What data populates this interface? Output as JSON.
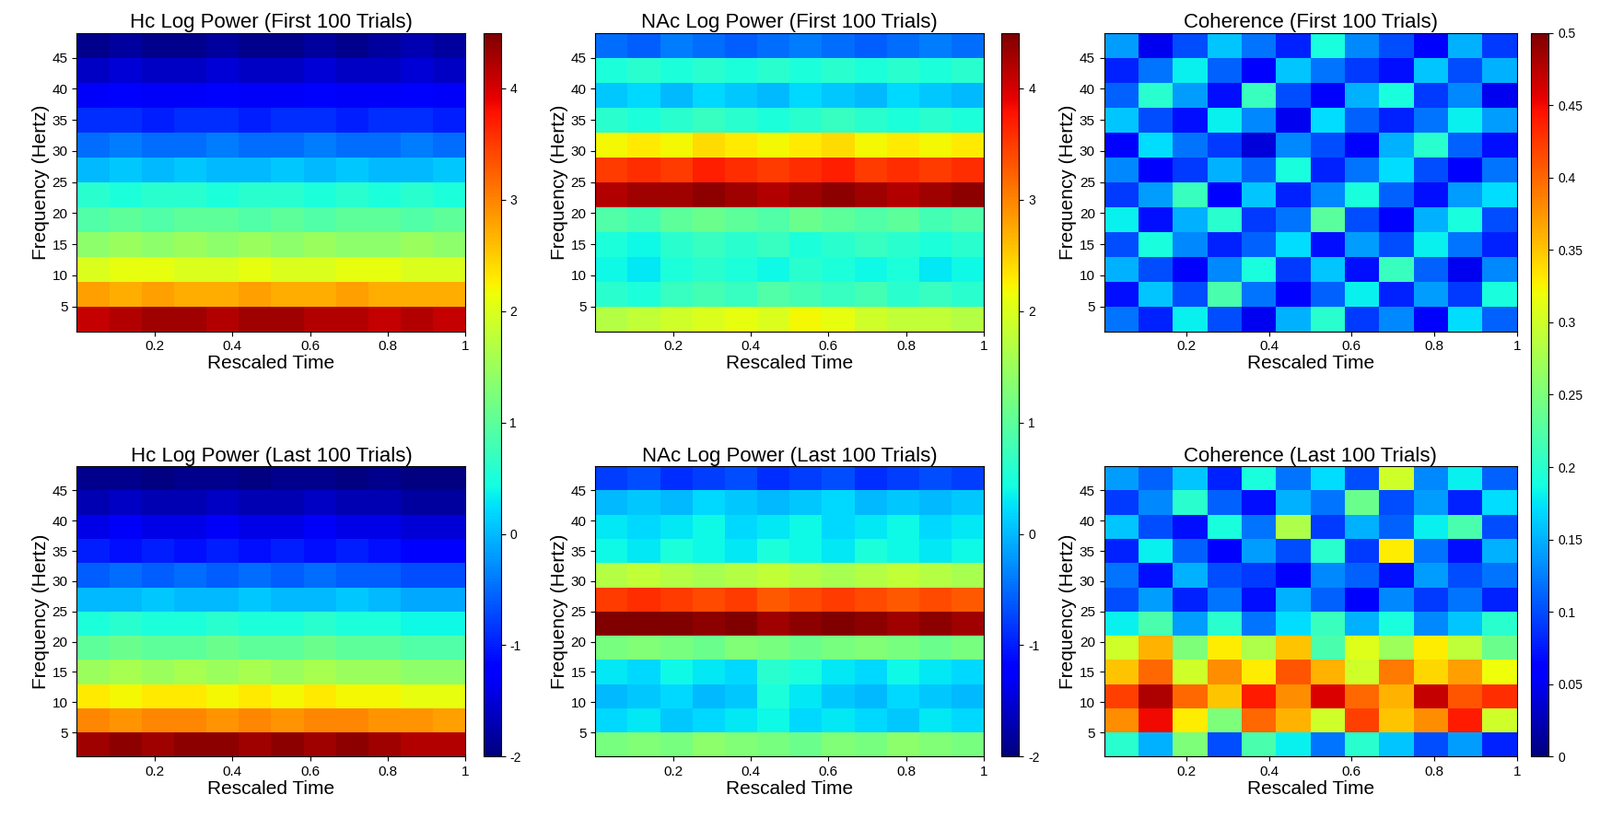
{
  "chart_data": [
    {
      "type": "heatmap",
      "title": "Hc Log Power (First 100 Trials)",
      "x_label": "Rescaled Time",
      "y_label": "Frequency (Hertz)",
      "xlim": [
        0,
        1
      ],
      "ylim": [
        1,
        49
      ],
      "xticks": [
        0.2,
        0.4,
        0.6,
        0.8,
        1
      ],
      "yticks": [
        5,
        10,
        15,
        20,
        25,
        30,
        35,
        40,
        45
      ],
      "cells": [
        [
          4.1,
          4.2,
          4.3,
          4.3,
          4.2,
          4.3,
          4.3,
          4.2,
          4.2,
          4.1,
          4.2,
          4.1
        ],
        [
          2.8,
          2.7,
          2.8,
          2.7,
          2.7,
          2.8,
          2.7,
          2.7,
          2.8,
          2.7,
          2.7,
          2.7
        ],
        [
          2.0,
          2.1,
          2.1,
          2.0,
          2.0,
          2.1,
          2.0,
          2.0,
          2.1,
          2.1,
          2.0,
          2.0
        ],
        [
          1.4,
          1.5,
          1.4,
          1.5,
          1.4,
          1.5,
          1.4,
          1.5,
          1.4,
          1.4,
          1.5,
          1.4
        ],
        [
          0.9,
          1.0,
          0.9,
          1.0,
          1.0,
          0.9,
          1.0,
          0.9,
          1.0,
          1.0,
          0.9,
          1.0
        ],
        [
          0.6,
          0.5,
          0.6,
          0.6,
          0.5,
          0.6,
          0.6,
          0.5,
          0.6,
          0.5,
          0.6,
          0.5
        ],
        [
          0.0,
          0.1,
          0.0,
          0.1,
          0.0,
          0.0,
          0.1,
          0.0,
          0.1,
          0.0,
          0.0,
          0.1
        ],
        [
          -0.5,
          -0.4,
          -0.5,
          -0.5,
          -0.4,
          -0.5,
          -0.5,
          -0.4,
          -0.5,
          -0.5,
          -0.4,
          -0.5
        ],
        [
          -0.9,
          -0.9,
          -1.0,
          -0.9,
          -0.9,
          -1.0,
          -0.9,
          -0.9,
          -1.0,
          -0.9,
          -0.9,
          -1.0
        ],
        [
          -1.3,
          -1.2,
          -1.3,
          -1.3,
          -1.2,
          -1.3,
          -1.3,
          -1.2,
          -1.3,
          -1.3,
          -1.2,
          -1.3
        ],
        [
          -1.6,
          -1.5,
          -1.6,
          -1.6,
          -1.5,
          -1.6,
          -1.6,
          -1.5,
          -1.6,
          -1.6,
          -1.5,
          -1.6
        ],
        [
          -1.9,
          -1.8,
          -1.9,
          -1.9,
          -1.8,
          -1.9,
          -1.9,
          -1.8,
          -1.9,
          -1.8,
          -1.7,
          -1.8
        ]
      ]
    },
    {
      "type": "heatmap",
      "title": "NAc Log Power (First 100 Trials)",
      "x_label": "Rescaled Time",
      "y_label": "Frequency (Hertz)",
      "xlim": [
        0,
        1
      ],
      "ylim": [
        1,
        49
      ],
      "xticks": [
        0.2,
        0.4,
        0.6,
        0.8,
        1
      ],
      "yticks": [
        5,
        10,
        15,
        20,
        25,
        30,
        35,
        40,
        45
      ],
      "cells": [
        [
          1.7,
          1.8,
          1.9,
          2.0,
          2.1,
          2.0,
          2.2,
          2.1,
          1.9,
          1.8,
          1.8,
          1.7
        ],
        [
          0.6,
          0.5,
          0.7,
          0.8,
          0.7,
          0.9,
          0.8,
          0.7,
          0.8,
          0.6,
          0.7,
          0.6
        ],
        [
          0.4,
          0.3,
          0.5,
          0.6,
          0.5,
          0.4,
          0.6,
          0.5,
          0.4,
          0.5,
          0.3,
          0.4
        ],
        [
          0.5,
          0.4,
          0.6,
          0.7,
          0.6,
          0.7,
          0.5,
          0.6,
          0.7,
          0.6,
          0.5,
          0.6
        ],
        [
          0.9,
          0.8,
          1.0,
          1.1,
          1.0,
          0.9,
          1.1,
          1.0,
          0.9,
          1.0,
          0.8,
          0.9
        ],
        [
          4.2,
          4.3,
          4.3,
          4.4,
          4.3,
          4.2,
          4.3,
          4.4,
          4.3,
          4.2,
          4.3,
          4.4
        ],
        [
          3.5,
          3.6,
          3.5,
          3.7,
          3.6,
          3.5,
          3.6,
          3.7,
          3.5,
          3.6,
          3.5,
          3.6
        ],
        [
          2.2,
          2.3,
          2.2,
          2.4,
          2.3,
          2.2,
          2.3,
          2.4,
          2.2,
          2.3,
          2.2,
          2.3
        ],
        [
          0.6,
          0.5,
          0.6,
          0.7,
          0.6,
          0.5,
          0.6,
          0.7,
          0.6,
          0.5,
          0.6,
          0.5
        ],
        [
          0.1,
          0.2,
          0.0,
          0.2,
          0.1,
          0.0,
          0.2,
          0.1,
          0.0,
          0.2,
          0.1,
          0.0
        ],
        [
          0.5,
          0.6,
          0.5,
          0.6,
          0.5,
          0.6,
          0.5,
          0.6,
          0.5,
          0.6,
          0.5,
          0.6
        ],
        [
          -0.5,
          -0.6,
          -0.4,
          -0.5,
          -0.6,
          -0.5,
          -0.4,
          -0.5,
          -0.6,
          -0.5,
          -0.4,
          -0.5
        ]
      ]
    },
    {
      "type": "heatmap",
      "title": "Coherence (First 100 Trials)",
      "x_label": "Rescaled Time",
      "y_label": "Frequency (Hertz)",
      "xlim": [
        0,
        1
      ],
      "ylim": [
        1,
        49
      ],
      "xticks": [
        0.2,
        0.4,
        0.6,
        0.8,
        1
      ],
      "yticks": [
        5,
        10,
        15,
        20,
        25,
        30,
        35,
        40,
        45
      ],
      "cells": [
        [
          0.12,
          0.08,
          0.18,
          0.1,
          0.05,
          0.15,
          0.2,
          0.09,
          0.13,
          0.06,
          0.17,
          0.11
        ],
        [
          0.07,
          0.16,
          0.1,
          0.22,
          0.12,
          0.06,
          0.11,
          0.18,
          0.08,
          0.14,
          0.09,
          0.19
        ],
        [
          0.15,
          0.1,
          0.06,
          0.13,
          0.19,
          0.09,
          0.16,
          0.07,
          0.21,
          0.11,
          0.05,
          0.13
        ],
        [
          0.1,
          0.19,
          0.13,
          0.08,
          0.11,
          0.17,
          0.07,
          0.14,
          0.1,
          0.18,
          0.12,
          0.08
        ],
        [
          0.18,
          0.07,
          0.15,
          0.2,
          0.09,
          0.12,
          0.23,
          0.1,
          0.06,
          0.15,
          0.19,
          0.1
        ],
        [
          0.09,
          0.14,
          0.21,
          0.06,
          0.16,
          0.08,
          0.13,
          0.19,
          0.11,
          0.07,
          0.14,
          0.17
        ],
        [
          0.13,
          0.06,
          0.09,
          0.15,
          0.11,
          0.19,
          0.08,
          0.12,
          0.17,
          0.1,
          0.06,
          0.12
        ],
        [
          0.06,
          0.17,
          0.12,
          0.09,
          0.04,
          0.13,
          0.1,
          0.06,
          0.15,
          0.2,
          0.11,
          0.07
        ],
        [
          0.16,
          0.1,
          0.07,
          0.18,
          0.13,
          0.05,
          0.17,
          0.11,
          0.08,
          0.12,
          0.18,
          0.14
        ],
        [
          0.11,
          0.2,
          0.14,
          0.07,
          0.21,
          0.1,
          0.06,
          0.15,
          0.19,
          0.09,
          0.13,
          0.05
        ],
        [
          0.08,
          0.12,
          0.18,
          0.11,
          0.06,
          0.16,
          0.12,
          0.09,
          0.07,
          0.16,
          0.1,
          0.15
        ],
        [
          0.14,
          0.05,
          0.1,
          0.16,
          0.12,
          0.08,
          0.19,
          0.13,
          0.1,
          0.06,
          0.15,
          0.09
        ]
      ]
    },
    {
      "type": "heatmap",
      "title": "Hc Log Power (Last 100 Trials)",
      "x_label": "Rescaled Time",
      "y_label": "Frequency (Hertz)",
      "xlim": [
        0,
        1
      ],
      "ylim": [
        1,
        49
      ],
      "xticks": [
        0.2,
        0.4,
        0.6,
        0.8,
        1
      ],
      "yticks": [
        5,
        10,
        15,
        20,
        25,
        30,
        35,
        40,
        45
      ],
      "cells": [
        [
          4.3,
          4.4,
          4.3,
          4.4,
          4.4,
          4.3,
          4.4,
          4.3,
          4.4,
          4.3,
          4.2,
          4.2
        ],
        [
          3.0,
          2.9,
          3.0,
          3.0,
          2.9,
          3.0,
          2.9,
          3.0,
          3.0,
          2.9,
          2.9,
          2.8
        ],
        [
          2.3,
          2.2,
          2.3,
          2.3,
          2.2,
          2.3,
          2.2,
          2.3,
          2.2,
          2.2,
          2.1,
          2.1
        ],
        [
          1.5,
          1.6,
          1.5,
          1.6,
          1.5,
          1.6,
          1.5,
          1.6,
          1.5,
          1.5,
          1.4,
          1.4
        ],
        [
          1.0,
          1.1,
          1.0,
          1.0,
          1.1,
          1.0,
          1.0,
          1.1,
          1.0,
          1.0,
          0.9,
          0.9
        ],
        [
          0.5,
          0.6,
          0.5,
          0.5,
          0.6,
          0.5,
          0.5,
          0.6,
          0.5,
          0.5,
          0.4,
          0.4
        ],
        [
          0.0,
          0.0,
          0.1,
          0.0,
          0.0,
          0.1,
          0.0,
          0.0,
          0.1,
          0.0,
          -0.1,
          -0.1
        ],
        [
          -0.6,
          -0.5,
          -0.6,
          -0.5,
          -0.6,
          -0.5,
          -0.6,
          -0.5,
          -0.6,
          -0.6,
          -0.7,
          -0.7
        ],
        [
          -1.0,
          -1.1,
          -1.0,
          -1.1,
          -1.0,
          -1.1,
          -1.0,
          -1.1,
          -1.0,
          -1.1,
          -1.2,
          -1.2
        ],
        [
          -1.4,
          -1.3,
          -1.4,
          -1.4,
          -1.3,
          -1.4,
          -1.4,
          -1.3,
          -1.4,
          -1.4,
          -1.5,
          -1.5
        ],
        [
          -1.7,
          -1.6,
          -1.7,
          -1.7,
          -1.6,
          -1.7,
          -1.7,
          -1.6,
          -1.7,
          -1.7,
          -1.8,
          -1.8
        ],
        [
          -1.9,
          -1.9,
          -2.0,
          -1.9,
          -1.9,
          -2.0,
          -1.9,
          -1.9,
          -2.0,
          -1.9,
          -2.0,
          -2.0
        ]
      ]
    },
    {
      "type": "heatmap",
      "title": "NAc Log Power (Last 100 Trials)",
      "x_label": "Rescaled Time",
      "y_label": "Frequency (Hertz)",
      "xlim": [
        0,
        1
      ],
      "ylim": [
        1,
        49
      ],
      "xticks": [
        0.2,
        0.4,
        0.6,
        0.8,
        1
      ],
      "yticks": [
        5,
        10,
        15,
        20,
        25,
        30,
        35,
        40,
        45
      ],
      "cells": [
        [
          1.2,
          1.3,
          1.2,
          1.4,
          1.3,
          1.2,
          1.1,
          1.3,
          1.2,
          1.4,
          1.3,
          1.2
        ],
        [
          0.2,
          0.3,
          0.1,
          0.2,
          0.3,
          0.4,
          0.2,
          0.3,
          0.2,
          0.1,
          0.3,
          0.2
        ],
        [
          0.0,
          0.1,
          0.2,
          0.0,
          0.1,
          0.5,
          0.3,
          0.1,
          0.0,
          0.2,
          0.1,
          0.0
        ],
        [
          0.3,
          0.2,
          0.4,
          0.3,
          0.2,
          0.6,
          0.5,
          0.3,
          0.2,
          0.4,
          0.3,
          0.2
        ],
        [
          1.2,
          1.3,
          1.2,
          1.1,
          1.3,
          1.2,
          1.1,
          1.2,
          1.3,
          1.2,
          1.1,
          1.2
        ],
        [
          4.5,
          4.6,
          4.5,
          4.4,
          4.5,
          4.3,
          4.4,
          4.5,
          4.4,
          4.3,
          4.4,
          4.3
        ],
        [
          3.5,
          3.6,
          3.5,
          3.4,
          3.5,
          3.3,
          3.4,
          3.5,
          3.4,
          3.3,
          3.4,
          3.3
        ],
        [
          1.7,
          1.8,
          1.7,
          1.6,
          1.7,
          1.8,
          1.7,
          1.6,
          1.7,
          1.8,
          1.7,
          1.6
        ],
        [
          0.4,
          0.3,
          0.5,
          0.4,
          0.3,
          0.5,
          0.4,
          0.3,
          0.5,
          0.4,
          0.3,
          0.4
        ],
        [
          0.3,
          0.2,
          0.3,
          0.4,
          0.2,
          0.3,
          0.4,
          0.2,
          0.3,
          0.4,
          0.2,
          0.3
        ],
        [
          0.0,
          0.1,
          0.0,
          0.2,
          0.1,
          0.0,
          0.1,
          0.2,
          0.0,
          0.1,
          0.0,
          0.1
        ],
        [
          -0.8,
          -0.7,
          -0.9,
          -0.8,
          -0.7,
          -0.9,
          -0.8,
          -0.7,
          -0.9,
          -0.8,
          -0.7,
          -0.8
        ]
      ]
    },
    {
      "type": "heatmap",
      "title": "Coherence (Last 100 Trials)",
      "x_label": "Rescaled Time",
      "y_label": "Frequency (Hertz)",
      "xlim": [
        0,
        1
      ],
      "ylim": [
        1,
        49
      ],
      "xticks": [
        0.2,
        0.4,
        0.6,
        0.8,
        1
      ],
      "yticks": [
        5,
        10,
        15,
        20,
        25,
        30,
        35,
        40,
        45
      ],
      "cells": [
        [
          0.2,
          0.15,
          0.25,
          0.1,
          0.22,
          0.18,
          0.12,
          0.2,
          0.16,
          0.1,
          0.14,
          0.08
        ],
        [
          0.38,
          0.45,
          0.33,
          0.25,
          0.4,
          0.36,
          0.3,
          0.42,
          0.35,
          0.38,
          0.44,
          0.3
        ],
        [
          0.42,
          0.48,
          0.4,
          0.35,
          0.44,
          0.38,
          0.46,
          0.4,
          0.36,
          0.47,
          0.41,
          0.43
        ],
        [
          0.35,
          0.4,
          0.3,
          0.38,
          0.33,
          0.41,
          0.36,
          0.3,
          0.39,
          0.34,
          0.37,
          0.32
        ],
        [
          0.3,
          0.36,
          0.25,
          0.33,
          0.28,
          0.35,
          0.22,
          0.31,
          0.27,
          0.33,
          0.29,
          0.24
        ],
        [
          0.18,
          0.22,
          0.14,
          0.2,
          0.12,
          0.17,
          0.21,
          0.15,
          0.19,
          0.13,
          0.16,
          0.2
        ],
        [
          0.1,
          0.14,
          0.08,
          0.12,
          0.07,
          0.15,
          0.11,
          0.06,
          0.13,
          0.09,
          0.12,
          0.08
        ],
        [
          0.12,
          0.07,
          0.15,
          0.1,
          0.09,
          0.06,
          0.13,
          0.11,
          0.07,
          0.14,
          0.1,
          0.12
        ],
        [
          0.08,
          0.18,
          0.11,
          0.06,
          0.14,
          0.1,
          0.2,
          0.09,
          0.33,
          0.12,
          0.07,
          0.15
        ],
        [
          0.16,
          0.1,
          0.07,
          0.19,
          0.12,
          0.28,
          0.09,
          0.15,
          0.11,
          0.18,
          0.22,
          0.1
        ],
        [
          0.09,
          0.13,
          0.2,
          0.11,
          0.07,
          0.15,
          0.12,
          0.24,
          0.1,
          0.14,
          0.08,
          0.17
        ],
        [
          0.14,
          0.11,
          0.16,
          0.08,
          0.19,
          0.12,
          0.17,
          0.1,
          0.3,
          0.13,
          0.18,
          0.11
        ]
      ]
    }
  ],
  "colorbars": [
    {
      "range": [
        -2,
        4.5
      ],
      "ticks": [
        -2,
        -1,
        0,
        1,
        2,
        3,
        4
      ]
    },
    {
      "range": [
        -2,
        4.5
      ],
      "ticks": [
        -2,
        -1,
        0,
        1,
        2,
        3,
        4
      ]
    },
    {
      "range": [
        0,
        0.5
      ],
      "ticks": [
        0,
        0.05,
        0.1,
        0.15,
        0.2,
        0.25,
        0.3,
        0.35,
        0.4,
        0.45,
        0.5
      ]
    }
  ]
}
